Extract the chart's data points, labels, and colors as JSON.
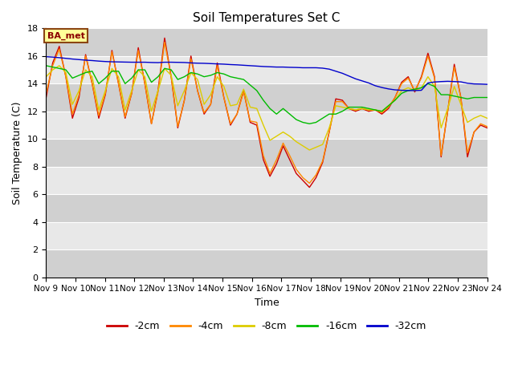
{
  "title": "Soil Temperatures Set C",
  "xlabel": "Time",
  "ylabel": "Soil Temperature (C)",
  "ylim": [
    0,
    18
  ],
  "yticks": [
    0,
    2,
    4,
    6,
    8,
    10,
    12,
    14,
    16,
    18
  ],
  "n_days": 15,
  "xtick_labels": [
    "Nov 9",
    "Nov 10",
    "Nov 11",
    "Nov 12",
    "Nov 13",
    "Nov 14",
    "Nov 15",
    "Nov 16",
    "Nov 17",
    "Nov 18",
    "Nov 19",
    "Nov 20",
    "Nov 21",
    "Nov 22",
    "Nov 23",
    "Nov 24"
  ],
  "annotation_label": "BA_met",
  "colors": {
    "-2cm": "#cc0000",
    "-4cm": "#ff8800",
    "-8cm": "#ddcc00",
    "-16cm": "#00bb00",
    "-32cm": "#0000cc"
  },
  "bg_light": "#e8e8e8",
  "bg_dark": "#d0d0d0",
  "series": {
    "-2cm": [
      13.0,
      15.5,
      16.7,
      14.5,
      11.5,
      13.0,
      16.1,
      14.0,
      11.5,
      13.2,
      16.4,
      14.0,
      11.5,
      13.3,
      16.6,
      14.0,
      11.1,
      13.5,
      17.3,
      14.5,
      10.8,
      12.8,
      16.0,
      13.5,
      11.8,
      12.5,
      15.5,
      13.0,
      11.0,
      11.8,
      13.5,
      11.2,
      11.0,
      8.5,
      7.3,
      8.2,
      9.5,
      8.5,
      7.5,
      7.0,
      6.5,
      7.2,
      8.3,
      10.5,
      12.9,
      12.8,
      12.2,
      12.0,
      12.2,
      12.0,
      12.1,
      11.8,
      12.2,
      13.0,
      14.1,
      14.5,
      13.4,
      14.5,
      16.2,
      14.5,
      8.7,
      12.0,
      15.4,
      13.0,
      8.7,
      10.5,
      11.0,
      10.8
    ],
    "-4cm": [
      13.3,
      15.3,
      16.5,
      14.5,
      11.8,
      13.2,
      16.0,
      14.0,
      11.7,
      13.3,
      16.3,
      14.0,
      11.6,
      13.3,
      16.4,
      14.0,
      11.1,
      13.4,
      17.0,
      14.5,
      10.9,
      12.8,
      15.8,
      13.5,
      11.9,
      12.5,
      15.3,
      13.0,
      11.1,
      11.8,
      13.4,
      11.3,
      11.2,
      8.8,
      7.5,
      8.5,
      9.7,
      8.8,
      7.8,
      7.2,
      6.8,
      7.4,
      8.4,
      10.5,
      12.7,
      12.7,
      12.2,
      12.1,
      12.2,
      12.1,
      12.1,
      11.9,
      12.3,
      13.0,
      14.0,
      14.4,
      13.5,
      14.4,
      16.0,
      14.4,
      8.8,
      12.0,
      15.2,
      13.0,
      9.0,
      10.5,
      11.1,
      10.9
    ],
    "-8cm": [
      14.5,
      15.0,
      15.3,
      14.8,
      12.5,
      13.5,
      15.0,
      14.5,
      12.1,
      13.5,
      15.1,
      14.5,
      12.1,
      13.5,
      15.0,
      14.5,
      12.0,
      13.5,
      15.1,
      14.6,
      12.4,
      13.5,
      14.8,
      14.3,
      12.5,
      13.2,
      14.5,
      13.8,
      12.4,
      12.5,
      13.6,
      12.3,
      12.2,
      11.0,
      9.9,
      10.2,
      10.5,
      10.2,
      9.8,
      9.5,
      9.2,
      9.4,
      9.6,
      10.8,
      12.4,
      12.3,
      12.2,
      12.1,
      12.2,
      12.1,
      12.1,
      12.0,
      12.4,
      12.8,
      13.5,
      13.7,
      13.5,
      13.7,
      14.5,
      13.8,
      10.8,
      12.2,
      13.8,
      12.5,
      11.2,
      11.5,
      11.7,
      11.5
    ],
    "-16cm": [
      15.3,
      15.2,
      15.1,
      15.0,
      14.4,
      14.6,
      14.8,
      14.9,
      14.0,
      14.4,
      14.9,
      14.9,
      14.0,
      14.4,
      15.0,
      15.0,
      14.1,
      14.5,
      15.1,
      15.0,
      14.3,
      14.5,
      14.8,
      14.7,
      14.5,
      14.6,
      14.8,
      14.7,
      14.5,
      14.4,
      14.3,
      13.9,
      13.5,
      12.8,
      12.2,
      11.8,
      12.2,
      11.8,
      11.4,
      11.2,
      11.1,
      11.2,
      11.5,
      11.8,
      11.8,
      12.0,
      12.3,
      12.3,
      12.3,
      12.2,
      12.1,
      12.0,
      12.4,
      12.8,
      13.3,
      13.5,
      13.6,
      13.7,
      14.0,
      13.8,
      13.2,
      13.2,
      13.1,
      13.0,
      12.9,
      13.0,
      13.0,
      13.0
    ],
    "-32cm": [
      15.95,
      15.92,
      15.88,
      15.83,
      15.78,
      15.74,
      15.7,
      15.67,
      15.63,
      15.6,
      15.58,
      15.57,
      15.56,
      15.55,
      15.55,
      15.55,
      15.53,
      15.52,
      15.55,
      15.55,
      15.54,
      15.53,
      15.5,
      15.48,
      15.47,
      15.45,
      15.43,
      15.41,
      15.38,
      15.36,
      15.33,
      15.3,
      15.27,
      15.24,
      15.22,
      15.2,
      15.2,
      15.18,
      15.17,
      15.15,
      15.15,
      15.15,
      15.12,
      15.05,
      14.9,
      14.75,
      14.55,
      14.35,
      14.2,
      14.05,
      13.85,
      13.72,
      13.62,
      13.55,
      13.52,
      13.5,
      13.5,
      13.52,
      14.05,
      14.12,
      14.15,
      14.17,
      14.15,
      14.13,
      14.03,
      13.98,
      13.97,
      13.95
    ]
  }
}
